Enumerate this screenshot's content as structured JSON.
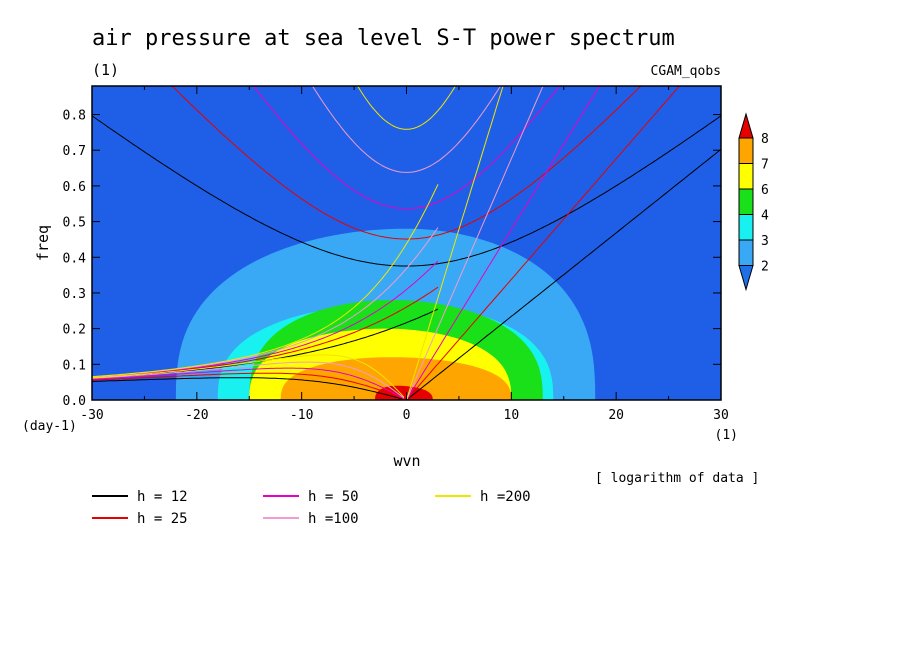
{
  "chart_data": {
    "type": "heatmap",
    "title": "air pressure at sea level S-T power spectrum",
    "units": "(1)",
    "source": "CGAM_qobs",
    "xlabel": "wvn",
    "ylabel": "freq",
    "x_units": "(1)",
    "y_units": "(day-1)",
    "xlim": [
      -30,
      30
    ],
    "ylim": [
      0,
      0.88
    ],
    "x_ticks": [
      -30,
      -20,
      -10,
      0,
      10,
      20,
      30
    ],
    "y_ticks": [
      0.0,
      0.1,
      0.2,
      0.3,
      0.4,
      0.5,
      0.6,
      0.7,
      0.8
    ],
    "note": "[ logarithm of data ]",
    "colorbar": {
      "labels": [
        2,
        3,
        4,
        6,
        7,
        8
      ],
      "colors": [
        "#1f6fe6",
        "#39a9f5",
        "#19f0f0",
        "#19e019",
        "#ffff00",
        "#ffa500",
        "#e60000"
      ],
      "background_color": "#1f5fe8"
    },
    "filled_contours": [
      {
        "level": 2,
        "color": "#39a9f5",
        "center_x": 0,
        "extent_x": [
          -22,
          18
        ],
        "peak_freq": 0.48
      },
      {
        "level": 3,
        "color": "#19f0f0",
        "center_x": -1,
        "extent_x": [
          -18,
          14
        ],
        "peak_freq": 0.27
      },
      {
        "level": 4,
        "color": "#19e019",
        "center_x": -1.5,
        "extent_x": [
          -15,
          13
        ],
        "peak_freq": 0.28
      },
      {
        "level": 6,
        "color": "#ffff00",
        "center_x": -2,
        "extent_x": [
          -15,
          10
        ],
        "peak_freq": 0.2
      },
      {
        "level": 7,
        "color": "#ffa500",
        "center_x": -1.5,
        "extent_x": [
          -12,
          10
        ],
        "peak_freq": 0.12
      },
      {
        "level": 8,
        "color": "#e60000",
        "center_x": -1,
        "extent_x": [
          -3,
          2.5
        ],
        "peak_freq": 0.04
      }
    ],
    "dispersion_curves": [
      {
        "label": "h = 12",
        "h": 12,
        "color": "#000000"
      },
      {
        "label": "h = 25",
        "h": 25,
        "color": "#e60000"
      },
      {
        "label": "h = 50",
        "h": 50,
        "color": "#e600c8"
      },
      {
        "label": "h =100",
        "h": 100,
        "color": "#f09bd2"
      },
      {
        "label": "h =200",
        "h": 200,
        "color": "#f0e600"
      }
    ],
    "legend_placement": "bottom"
  }
}
